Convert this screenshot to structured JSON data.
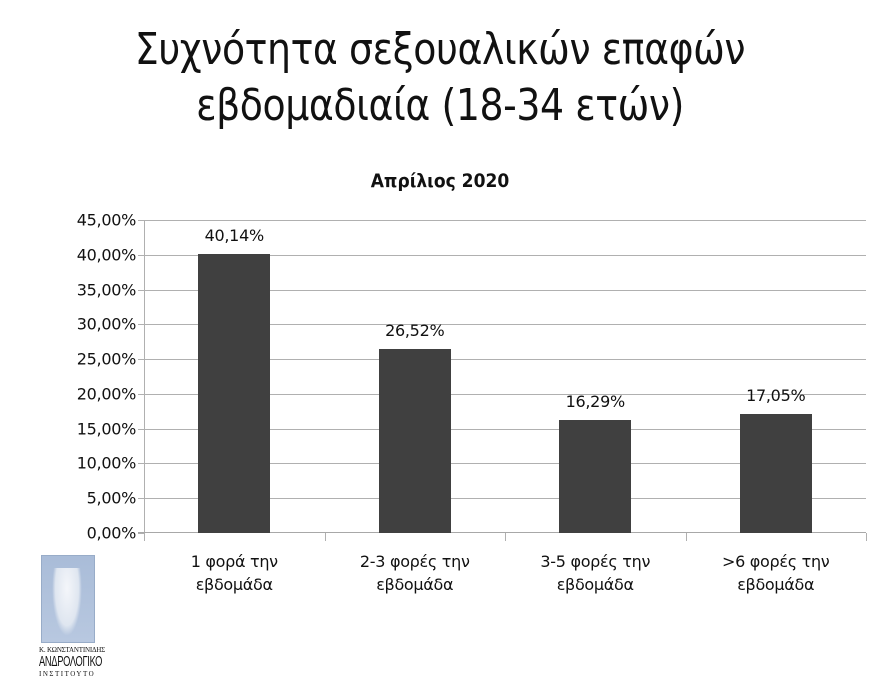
{
  "slide": {
    "title_line1": "Συχνότητα σεξουαλικών επαφών",
    "title_line2": "εβδομαδιαία (18-34 ετών)"
  },
  "logo": {
    "line1": "Κ. ΚΩΝΣΤΑΝΤΙΝΙΔΗΣ",
    "line2": "ΑΝΔΡΟΛΟΓΙΚΟ",
    "line3": "ΙΝΣΤΙΤΟΥΤΟ"
  },
  "chart_data": {
    "type": "bar",
    "title": "Απρίλιος 2020",
    "xlabel": "",
    "ylabel": "",
    "ylim": [
      0,
      45
    ],
    "grid": true,
    "legend": "none",
    "bar_color": "#404040",
    "y_ticks": [
      "0,00%",
      "5,00%",
      "10,00%",
      "15,00%",
      "20,00%",
      "25,00%",
      "30,00%",
      "35,00%",
      "40,00%",
      "45,00%"
    ],
    "categories": [
      {
        "line1": "1 φορά την",
        "line2": "εβδομάδα"
      },
      {
        "line1": "2-3 φορές την",
        "line2": "εβδομάδα"
      },
      {
        "line1": "3-5 φορές την",
        "line2": "εβδομάδα"
      },
      {
        "line1": ">6 φορές την",
        "line2": "εβδομάδα"
      }
    ],
    "values": [
      40.14,
      26.52,
      16.29,
      17.05
    ],
    "value_labels": [
      "40,14%",
      "26,52%",
      "16,29%",
      "17,05%"
    ]
  }
}
